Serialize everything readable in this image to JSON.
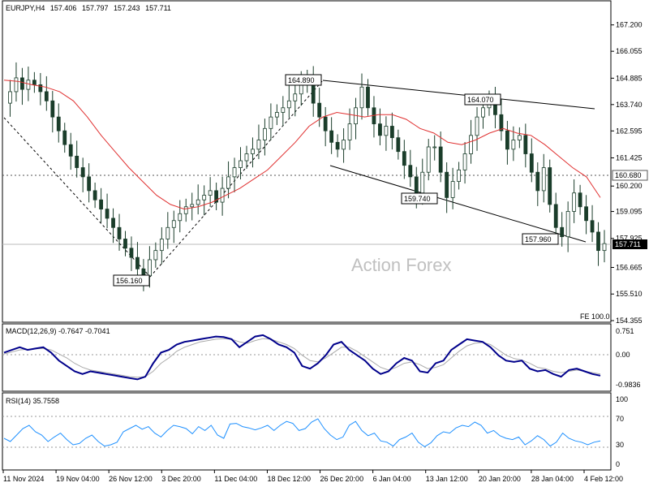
{
  "chart_data": [
    {
      "type": "candlestick",
      "header": {
        "symbol": "EURJPY,H4",
        "open": "157.406",
        "high": "157.797",
        "low": "157.243",
        "close": "157.711"
      },
      "y_ticks": [
        "167.200",
        "166.055",
        "164.885",
        "163.740",
        "162.595",
        "161.425",
        "160.200",
        "159.095",
        "157.925",
        "156.665",
        "155.510",
        "154.355"
      ],
      "ylim": [
        154.355,
        168.0
      ],
      "x_ticks": [
        "11 Nov 2024",
        "19 Nov 04:00",
        "26 Nov 12:00",
        "3 Dec 20:00",
        "11 Dec 04:00",
        "18 Dec 12:00",
        "26 Dec 20:00",
        "6 Jan 04:00",
        "13 Jan 12:00",
        "20 Jan 20:00",
        "28 Jan 04:00",
        "4 Feb 12:00"
      ],
      "close_path": [
        163.8,
        164.3,
        164.9,
        164.4,
        164.8,
        164.6,
        164.3,
        163.9,
        163.2,
        162.6,
        162.0,
        161.5,
        161.0,
        160.6,
        160.0,
        159.6,
        159.2,
        158.8,
        158.4,
        157.9,
        157.5,
        157.1,
        156.6,
        156.3,
        157.0,
        157.4,
        157.9,
        158.4,
        158.7,
        159.0,
        159.3,
        159.4,
        159.6,
        159.8,
        160.0,
        159.5,
        160.1,
        160.6,
        161.0,
        161.3,
        161.6,
        161.8,
        162.2,
        162.7,
        163.2,
        163.4,
        163.6,
        163.9,
        164.2,
        164.6,
        164.9,
        163.8,
        163.2,
        162.6,
        162.1,
        161.8,
        162.2,
        162.9,
        163.6,
        164.5,
        163.6,
        162.9,
        162.4,
        162.8,
        162.3,
        161.7,
        161.1,
        160.6,
        159.9,
        160.8,
        161.9,
        161.9,
        160.8,
        159.7,
        160.4,
        160.9,
        161.6,
        162.4,
        163.2,
        163.6,
        164.0,
        163.3,
        162.6,
        161.8,
        162.2,
        162.4,
        161.6,
        160.8,
        160.0,
        161.0,
        159.4,
        158.4,
        158.0,
        159.1,
        159.9,
        159.3,
        158.7,
        158.2,
        157.4,
        157.7
      ],
      "sma_path": [
        164.8,
        164.75,
        164.6,
        164.5,
        164.3,
        163.9,
        163.2,
        162.4,
        161.7,
        161.0,
        160.4,
        159.8,
        159.4,
        159.2,
        159.3,
        159.5,
        159.8,
        160.1,
        160.5,
        160.9,
        161.5,
        162.1,
        162.8,
        163.2,
        163.4,
        163.3,
        163.2,
        163.3,
        163.3,
        163.1,
        162.7,
        162.5,
        162.1,
        162.0,
        162.2,
        162.5,
        162.7,
        162.5,
        162.4,
        162.0,
        161.5,
        161.0,
        160.6,
        159.7
      ],
      "levels": [
        {
          "label": "160.680",
          "value": 160.68,
          "style": "dotted"
        },
        {
          "label": "157.711",
          "value": 157.711,
          "style": "solid"
        }
      ],
      "annotations": [
        {
          "label": "164.890",
          "value": 164.89
        },
        {
          "label": "164.070",
          "value": 164.07
        },
        {
          "label": "159.740",
          "value": 159.74
        },
        {
          "label": "157.960",
          "value": 157.96
        },
        {
          "label": "156.160",
          "value": 156.16
        }
      ],
      "current_price": "157.711",
      "current_price_label": "157.711",
      "level_label": "160.680",
      "fe_label": "FE 100.0",
      "watermark": "Action Forex"
    },
    {
      "type": "line",
      "title": "MACD(12,26,9) -0.7647 -0.7041",
      "y_ticks": [
        "0.751",
        "0.00",
        "-0.9836"
      ],
      "ylim": [
        -1.1,
        0.9
      ],
      "macd": [
        0.1,
        0.2,
        0.3,
        0.2,
        0.25,
        0.3,
        0.1,
        -0.2,
        -0.4,
        -0.6,
        -0.7,
        -0.6,
        -0.65,
        -0.7,
        -0.75,
        -0.8,
        -0.85,
        -0.9,
        -0.8,
        -0.3,
        0.1,
        0.2,
        0.4,
        0.5,
        0.55,
        0.6,
        0.65,
        0.7,
        0.68,
        0.6,
        0.3,
        0.5,
        0.7,
        0.75,
        0.6,
        0.4,
        0.3,
        0.1,
        -0.4,
        -0.5,
        -0.3,
        0.0,
        0.4,
        0.5,
        0.2,
        0.0,
        -0.2,
        -0.5,
        -0.7,
        -0.6,
        -0.3,
        -0.1,
        -0.2,
        -0.6,
        -0.65,
        -0.3,
        -0.2,
        0.2,
        0.4,
        0.6,
        0.55,
        0.5,
        0.3,
        0.0,
        -0.2,
        -0.25,
        -0.2,
        -0.5,
        -0.6,
        -0.55,
        -0.7,
        -0.8,
        -0.55,
        -0.5,
        -0.6,
        -0.7,
        -0.76
      ],
      "signal": [
        0.05,
        0.12,
        0.2,
        0.22,
        0.24,
        0.25,
        0.2,
        0.05,
        -0.1,
        -0.3,
        -0.45,
        -0.55,
        -0.6,
        -0.65,
        -0.7,
        -0.75,
        -0.8,
        -0.82,
        -0.8,
        -0.6,
        -0.3,
        -0.1,
        0.15,
        0.3,
        0.4,
        0.5,
        0.55,
        0.6,
        0.62,
        0.6,
        0.5,
        0.45,
        0.55,
        0.62,
        0.6,
        0.5,
        0.4,
        0.25,
        0.0,
        -0.2,
        -0.25,
        -0.1,
        0.1,
        0.3,
        0.3,
        0.15,
        -0.05,
        -0.25,
        -0.45,
        -0.55,
        -0.45,
        -0.3,
        -0.25,
        -0.35,
        -0.5,
        -0.45,
        -0.35,
        -0.1,
        0.15,
        0.35,
        0.45,
        0.48,
        0.4,
        0.2,
        0.0,
        -0.12,
        -0.18,
        -0.3,
        -0.45,
        -0.5,
        -0.6,
        -0.65,
        -0.6,
        -0.55,
        -0.6,
        -0.65,
        -0.7
      ]
    },
    {
      "type": "line",
      "title": "RSI(14) 35.7558",
      "y_ticks": [
        "100",
        "70",
        "30",
        "0"
      ],
      "ylim": [
        0,
        100
      ],
      "rsi": [
        40,
        35,
        45,
        55,
        60,
        50,
        45,
        35,
        42,
        48,
        38,
        30,
        32,
        40,
        45,
        35,
        28,
        30,
        34,
        50,
        55,
        60,
        54,
        58,
        48,
        42,
        52,
        60,
        58,
        55,
        47,
        58,
        52,
        60,
        45,
        40,
        62,
        63,
        58,
        56,
        53,
        56,
        60,
        52,
        60,
        66,
        63,
        52,
        55,
        65,
        70,
        55,
        45,
        38,
        42,
        60,
        66,
        52,
        44,
        48,
        36,
        34,
        28,
        38,
        42,
        48,
        34,
        27,
        33,
        44,
        50,
        48,
        56,
        60,
        58,
        65,
        60,
        48,
        52,
        44,
        40,
        38,
        42,
        30,
        36,
        44,
        38,
        28,
        34,
        48,
        40,
        36,
        34,
        30,
        34,
        36
      ]
    }
  ]
}
